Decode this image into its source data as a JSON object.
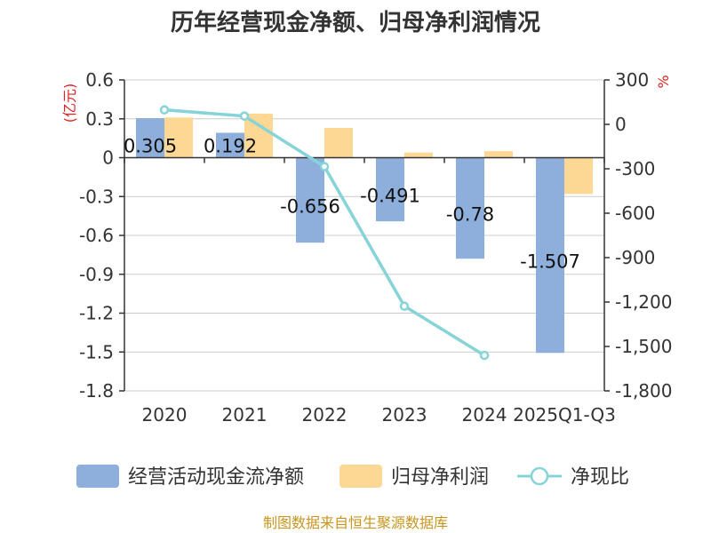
{
  "chart_data": {
    "type": "bar+line",
    "title": "历年经营现金净额、归母净利润情况",
    "categories": [
      "2020",
      "2021",
      "2022",
      "2023",
      "2024",
      "2025Q1-Q3"
    ],
    "series": [
      {
        "name": "经营活动现金流净额",
        "type": "bar",
        "axis": "left",
        "color": "#8eaedb",
        "values": [
          0.305,
          0.192,
          -0.656,
          -0.491,
          -0.78,
          -1.507
        ],
        "labels": [
          "0.305",
          "0.192",
          "-0.656",
          "-0.491",
          "-0.78",
          "-1.507"
        ]
      },
      {
        "name": "归母净利润",
        "type": "bar",
        "axis": "left",
        "color": "#fdd794",
        "values": [
          0.31,
          0.34,
          0.23,
          0.04,
          0.05,
          -0.28
        ]
      },
      {
        "name": "净现比",
        "type": "line",
        "axis": "right",
        "color": "#86d3d8",
        "values": [
          98,
          56,
          -285,
          -1228,
          -1560,
          null
        ]
      }
    ],
    "left_axis": {
      "unit": "(亿元)",
      "ylim": [
        -1.8,
        0.6
      ],
      "ticks": [
        0.6,
        0.3,
        0,
        -0.3,
        -0.6,
        -0.9,
        -1.2,
        -1.5,
        -1.8
      ],
      "tick_labels": [
        "0.6",
        "0.3",
        "0",
        "-0.3",
        "-0.6",
        "-0.9",
        "-1.2",
        "-1.5",
        "-1.8"
      ]
    },
    "right_axis": {
      "unit": "%",
      "ylim": [
        -1800,
        300
      ],
      "ticks": [
        300,
        0,
        -300,
        -600,
        -900,
        -1200,
        -1500,
        -1800
      ],
      "tick_labels": [
        "300",
        "0",
        "-300",
        "-600",
        "-900",
        "-1,200",
        "-1,500",
        "-1,800"
      ]
    },
    "grid": true,
    "legend_position": "bottom"
  },
  "source": "制图数据来自恒生聚源数据库",
  "colors": {
    "unit_red": "#dd2222",
    "source_gold": "#c8951e",
    "axis": "#333333",
    "grid": "#cccccc"
  }
}
